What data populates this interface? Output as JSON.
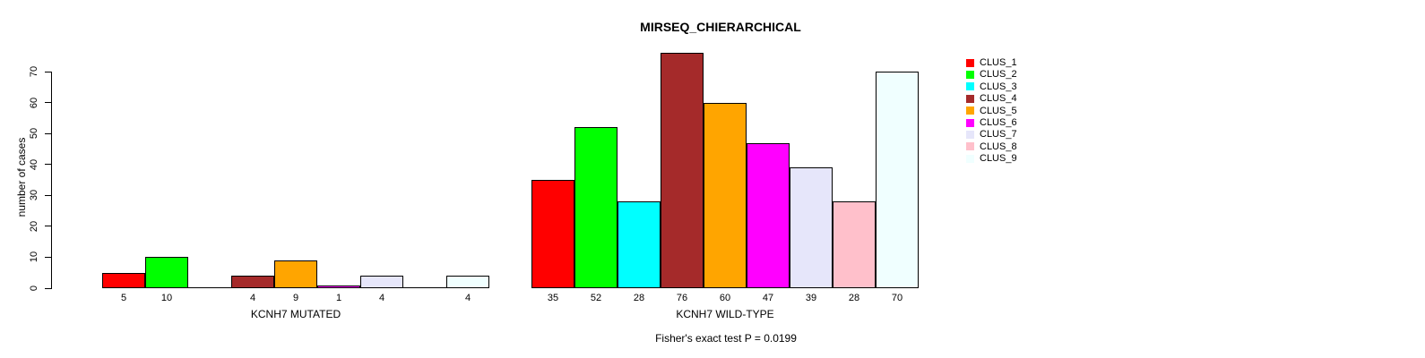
{
  "background": "#FFFFFF",
  "chart_data": {
    "type": "bar",
    "title": "MIRSEQ_CHIERARCHICAL",
    "ylabel": "number of cases",
    "annotation": "Fisher's exact test P = 0.0199",
    "ylim": [
      0,
      70
    ],
    "yticks": [
      0,
      10,
      20,
      30,
      40,
      50,
      60,
      70
    ],
    "grid": false,
    "legend_position": "right",
    "legend": [
      {
        "label": "CLUS_1",
        "color": "#FF0000"
      },
      {
        "label": "CLUS_2",
        "color": "#00FF00"
      },
      {
        "label": "CLUS_3",
        "color": "#00FFFF"
      },
      {
        "label": "CLUS_4",
        "color": "#A52A2A"
      },
      {
        "label": "CLUS_5",
        "color": "#FFA500"
      },
      {
        "label": "CLUS_6",
        "color": "#FF00FF"
      },
      {
        "label": "CLUS_7",
        "color": "#E6E6FA"
      },
      {
        "label": "CLUS_8",
        "color": "#FFC0CB"
      },
      {
        "label": "CLUS_9",
        "color": "#F0FFFF"
      }
    ],
    "groups": [
      {
        "xlabel": "KCNH7 MUTATED",
        "categories": [
          "CLUS_1",
          "CLUS_2",
          "CLUS_3",
          "CLUS_4",
          "CLUS_5",
          "CLUS_6",
          "CLUS_7",
          "CLUS_8",
          "CLUS_9"
        ],
        "values": [
          5,
          10,
          0,
          4,
          9,
          1,
          4,
          0,
          4
        ],
        "bar_labels": [
          "5",
          "10",
          "",
          "4",
          "9",
          "1",
          "4",
          "",
          "4"
        ]
      },
      {
        "xlabel": "KCNH7 WILD-TYPE",
        "categories": [
          "CLUS_1",
          "CLUS_2",
          "CLUS_3",
          "CLUS_4",
          "CLUS_5",
          "CLUS_6",
          "CLUS_7",
          "CLUS_8",
          "CLUS_9"
        ],
        "values": [
          35,
          52,
          28,
          76,
          60,
          47,
          39,
          28,
          70
        ],
        "bar_labels": [
          "35",
          "52",
          "28",
          "76",
          "60",
          "47",
          "39",
          "28",
          "70"
        ]
      }
    ]
  }
}
